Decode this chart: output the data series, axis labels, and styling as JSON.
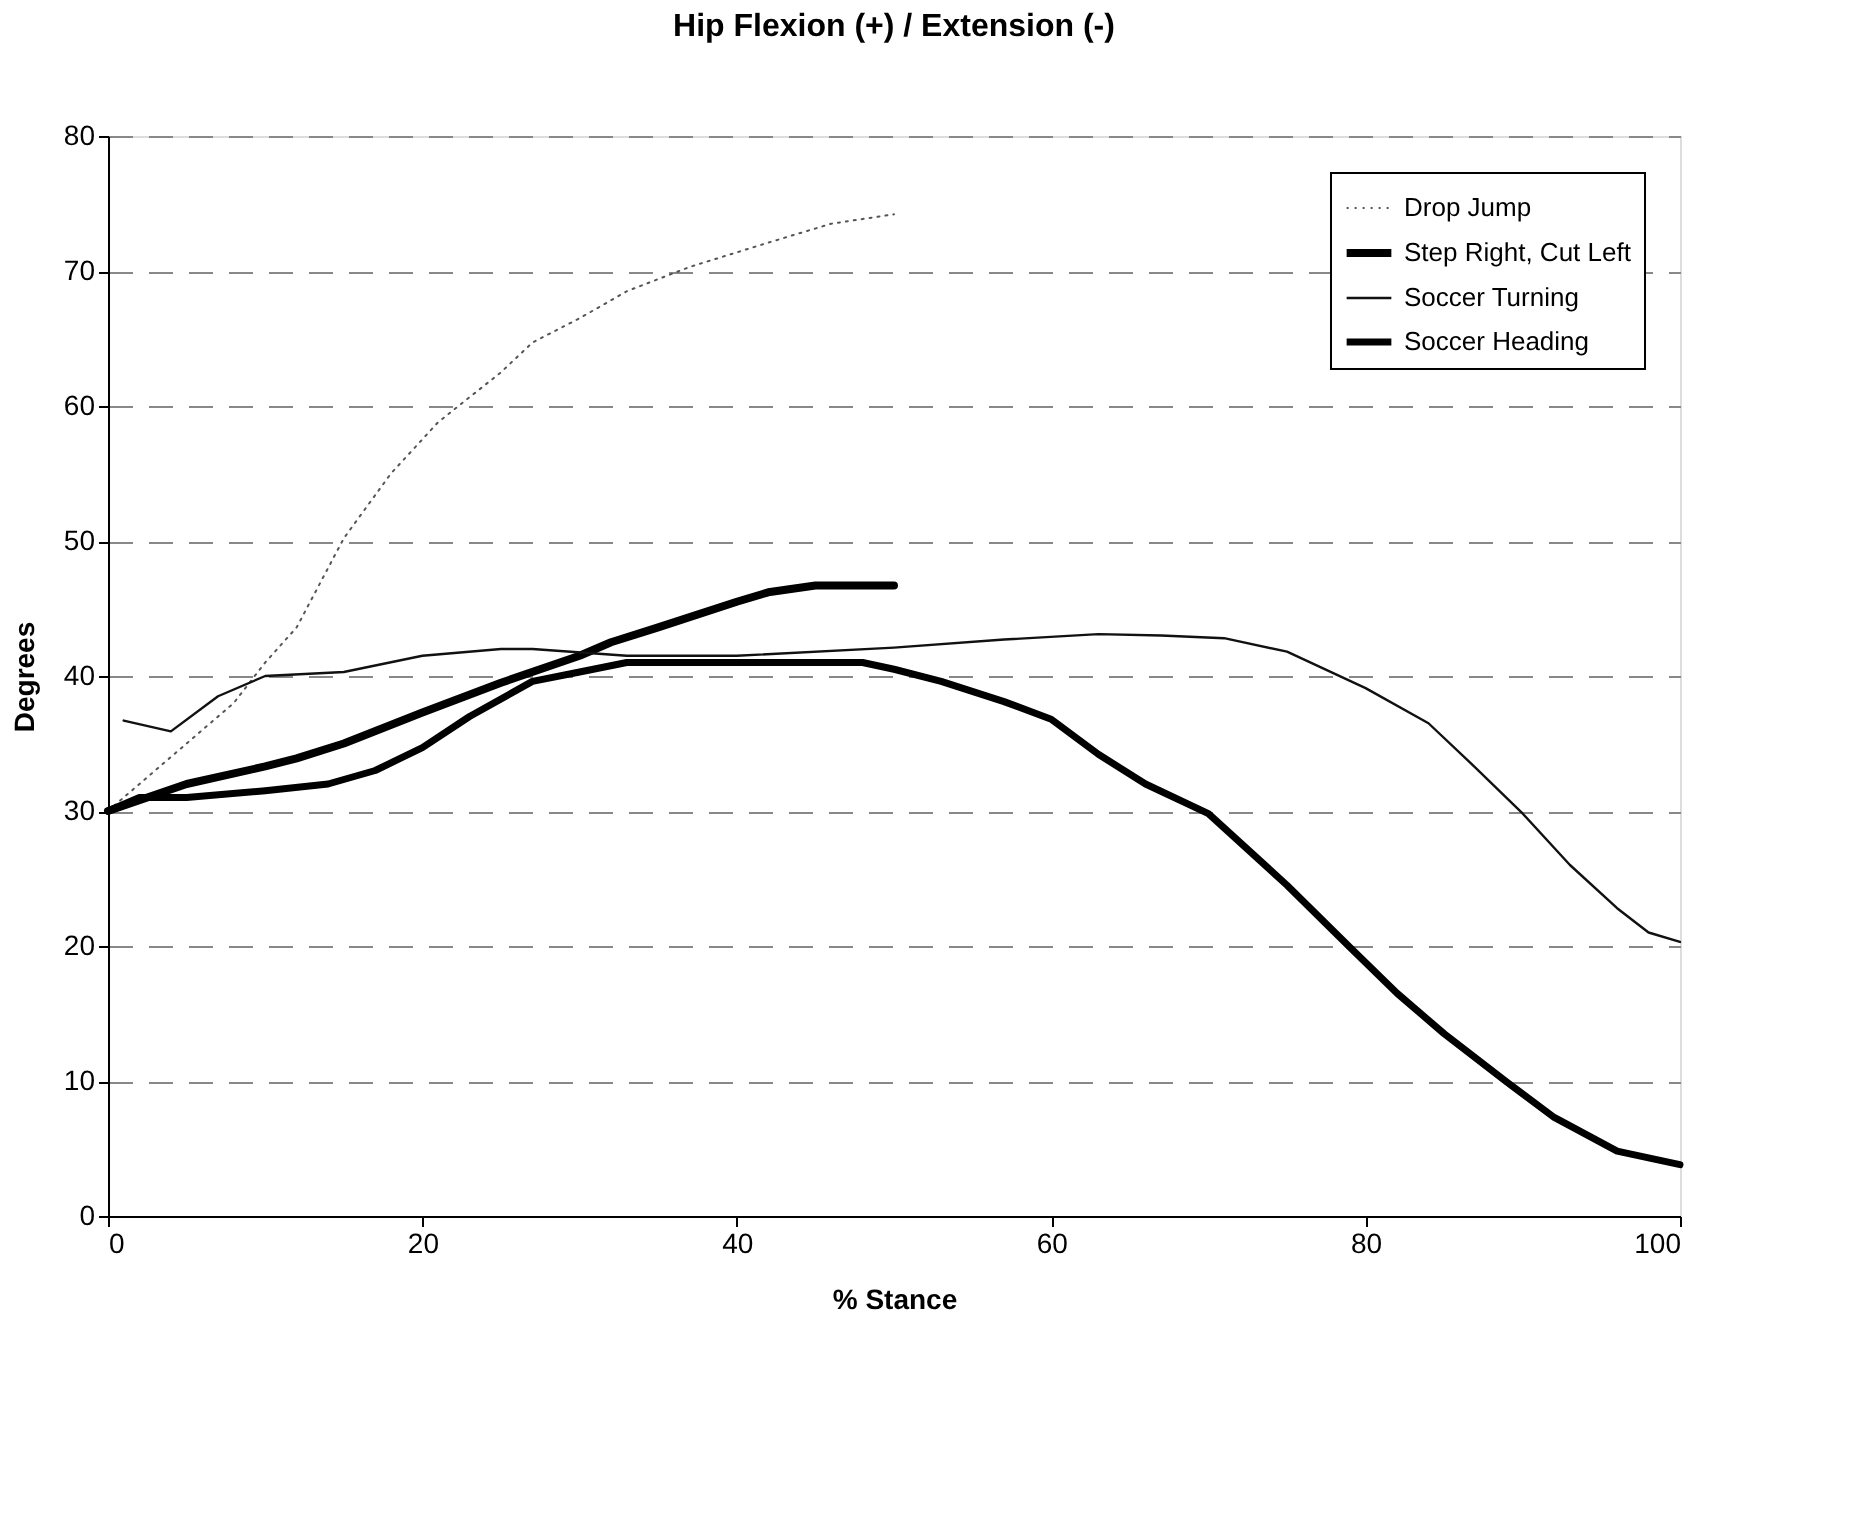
{
  "chart_data": {
    "type": "line",
    "title": "Hip Flexion (+) / Extension (-)",
    "xlabel": "% Stance",
    "ylabel": "Degrees",
    "xlim": [
      0,
      100
    ],
    "xticks": [
      0,
      20,
      40,
      60,
      80,
      100
    ],
    "ylim": [
      0,
      80
    ],
    "yticks": [
      0,
      10,
      20,
      30,
      40,
      50,
      60,
      70,
      80
    ],
    "grid": "y",
    "legend": "top right",
    "marker": "none",
    "series": [
      {
        "name": "Drop Jump",
        "color": "#555555",
        "line_style": "dotted",
        "x": [
          0,
          2,
          5,
          8,
          10,
          12,
          15,
          18,
          21,
          25,
          27,
          30,
          33,
          37,
          42,
          46,
          50
        ],
        "values": [
          30,
          32,
          35,
          38,
          41,
          43.6,
          50.2,
          55,
          58.8,
          62.5,
          64.7,
          66.5,
          68.5,
          70.3,
          72.1,
          73.5,
          74.2
        ]
      },
      {
        "name": "Step Right, Cut Left",
        "color": "#000000",
        "line_style": "solid",
        "x": [
          0,
          5,
          10,
          12,
          15,
          20,
          25,
          30,
          32,
          35,
          40,
          42,
          45,
          50
        ],
        "values": [
          30,
          32,
          33.3,
          33.9,
          35,
          37.3,
          39.5,
          41.5,
          42.5,
          43.6,
          45.5,
          46.2,
          46.7,
          46.7
        ]
      },
      {
        "name": "Soccer Turning",
        "color": "#111111",
        "line_style": "solid",
        "x": [
          1,
          4,
          7,
          10,
          15,
          20,
          25,
          27,
          33,
          40,
          50,
          57,
          63,
          67,
          71,
          75,
          80,
          84,
          87,
          90,
          93,
          96,
          98,
          100
        ],
        "values": [
          36.7,
          35.9,
          38.5,
          40,
          40.3,
          41.5,
          42,
          42,
          41.5,
          41.5,
          42.1,
          42.7,
          43.1,
          43,
          42.8,
          41.8,
          39.1,
          36.5,
          33.2,
          29.8,
          26,
          22.8,
          21,
          20.3
        ]
      },
      {
        "name": "Soccer Heading",
        "color": "#000000",
        "line_style": "solid",
        "x": [
          0,
          2,
          5,
          10,
          14,
          17,
          20,
          23,
          27,
          30,
          33,
          40,
          45,
          48,
          50,
          53,
          57,
          60,
          63,
          66,
          70,
          75,
          79,
          82,
          85,
          89,
          92,
          96,
          100
        ],
        "values": [
          30,
          31,
          31,
          31.5,
          32,
          33,
          34.7,
          37,
          39.6,
          40.3,
          41,
          41,
          41,
          41,
          40.5,
          39.6,
          38.1,
          36.8,
          34.2,
          32,
          29.8,
          24.5,
          19.9,
          16.5,
          13.5,
          9.9,
          7.3,
          4.8,
          3.8
        ]
      }
    ]
  }
}
